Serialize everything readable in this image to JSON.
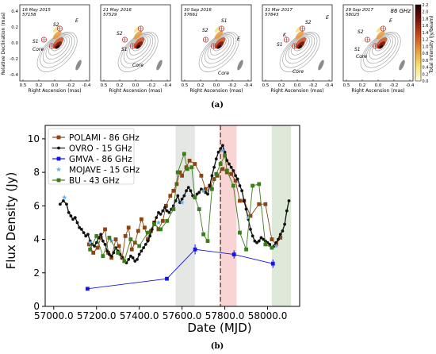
{
  "figure": {
    "label_a": "(a)",
    "label_b": "(b)"
  },
  "panels": [
    {
      "date": "16 May 2015",
      "mjd": "57158",
      "freq": "",
      "labels": [
        {
          "t": "S2"
        },
        {
          "t": "E"
        },
        {
          "t": "S1"
        },
        {
          "t": "Core"
        }
      ]
    },
    {
      "date": "21 May 2016",
      "mjd": "57529",
      "freq": "",
      "labels": [
        {
          "t": "S2"
        },
        {
          "t": "S1"
        },
        {
          "t": "Core"
        }
      ]
    },
    {
      "date": "30 Sep 2016",
      "mjd": "57661",
      "freq": "",
      "labels": [
        {
          "t": "S2"
        },
        {
          "t": "S1"
        },
        {
          "t": "E"
        },
        {
          "t": "Core"
        }
      ]
    },
    {
      "date": "31 Mar 2017",
      "mjd": "57843",
      "freq": "",
      "labels": [
        {
          "t": "K"
        },
        {
          "t": "S2"
        },
        {
          "t": "E"
        },
        {
          "t": "S1"
        },
        {
          "t": "Core"
        }
      ]
    },
    {
      "date": "29 Sep 2017",
      "mjd": "58025",
      "freq": "86 GHz",
      "labels": [
        {
          "t": "S2"
        },
        {
          "t": "E"
        },
        {
          "t": "S1"
        },
        {
          "t": "Core"
        }
      ]
    }
  ],
  "maps": {
    "ylabel": "Relative Declination (mas)",
    "xlabel": "Right Ascension (mas)",
    "xticks": [
      "0.5",
      "0.2",
      "0.0",
      "-0.2",
      "-0.4"
    ],
    "yticks": [
      "0.4",
      "0.2",
      "0.0",
      "-0.2",
      "-0.4"
    ],
    "colorbar_label": "Total Intensity (Jy/beam)",
    "colorbar_ticks": [
      "2.2",
      "2.0",
      "1.8",
      "1.6",
      "1.4",
      "1.2",
      "1.0",
      "0.8",
      "0.6",
      "0.4",
      "0.2",
      "0.0"
    ],
    "colormap": [
      "#fffde0",
      "#f8e070",
      "#e99a38",
      "#c84a1c",
      "#7a1408",
      "#1a0000"
    ]
  },
  "chart_data": {
    "type": "line",
    "xlabel": "Date (MJD)",
    "ylabel": "Flux Density (Jy)",
    "xlim": [
      56960,
      58150
    ],
    "ylim": [
      0,
      10.8
    ],
    "xticks": [
      57000,
      57200,
      57400,
      57600,
      57800,
      58000
    ],
    "xtick_labels": [
      "57000.0",
      "57200.0",
      "57400.0",
      "57600.0",
      "57800.0",
      "58000.0"
    ],
    "yticks": [
      0,
      2,
      4,
      6,
      8,
      10
    ],
    "ytick_labels": [
      "0",
      "2",
      "4",
      "6",
      "8",
      "10"
    ],
    "legend_position": "top-left",
    "shaded_regions": [
      {
        "x0": 57570,
        "x1": 57660,
        "color": "#d3d7d3"
      },
      {
        "x0": 57775,
        "x1": 57855,
        "color": "#f4b8b8"
      },
      {
        "x0": 58020,
        "x1": 58110,
        "color": "#c6dcbf"
      }
    ],
    "vertical_line": {
      "x": 57780,
      "color": "#7b5a4a"
    },
    "series": [
      {
        "name": "POLAMI - 86 GHz",
        "color": "#8b4513",
        "marker": "square",
        "lines": true,
        "x": [
          57165,
          57185,
          57205,
          57220,
          57240,
          57255,
          57270,
          57290,
          57305,
          57320,
          57335,
          57350,
          57365,
          57380,
          57395,
          57410,
          57425,
          57440,
          57455,
          57470,
          57490,
          57510,
          57525,
          57545,
          57560,
          57575,
          57590,
          57600,
          57620,
          57635,
          57660,
          57690,
          57710,
          57730,
          57750,
          57765,
          57790,
          57810,
          57830,
          57850,
          57870,
          57890,
          57920,
          57960,
          57990,
          58020,
          58040,
          58060
        ],
        "y": [
          3.7,
          3.2,
          3.5,
          4.1,
          4.6,
          3.2,
          2.9,
          4.0,
          3.6,
          2.9,
          4.2,
          4.7,
          3.4,
          3.8,
          4.5,
          5.2,
          4.7,
          4.0,
          4.5,
          5.0,
          4.6,
          5.1,
          6.0,
          6.6,
          6.9,
          7.3,
          8.0,
          7.8,
          8.3,
          8.7,
          8.5,
          7.8,
          7.0,
          7.2,
          7.6,
          7.8,
          8.2,
          8.0,
          7.9,
          7.5,
          6.3,
          6.3,
          5.4,
          6.1,
          6.1,
          4.0,
          3.7,
          4.1
        ]
      },
      {
        "name": "OVRO - 15 GHz",
        "color": "#111111",
        "marker": "circle",
        "lines": true,
        "x": [
          57030,
          57045,
          57060,
          57070,
          57080,
          57090,
          57100,
          57110,
          57120,
          57130,
          57140,
          57150,
          57160,
          57170,
          57180,
          57190,
          57200,
          57210,
          57220,
          57230,
          57240,
          57250,
          57260,
          57270,
          57280,
          57290,
          57300,
          57310,
          57320,
          57330,
          57340,
          57350,
          57360,
          57370,
          57380,
          57390,
          57400,
          57410,
          57420,
          57430,
          57440,
          57450,
          57460,
          57470,
          57480,
          57490,
          57500,
          57510,
          57520,
          57530,
          57540,
          57550,
          57560,
          57570,
          57580,
          57590,
          57600,
          57610,
          57620,
          57630,
          57640,
          57650,
          57660,
          57670,
          57680,
          57690,
          57700,
          57710,
          57720,
          57730,
          57740,
          57750,
          57760,
          57770,
          57780,
          57790,
          57800,
          57810,
          57820,
          57830,
          57840,
          57850,
          57860,
          57870,
          57880,
          57890,
          57900,
          57910,
          57920,
          57930,
          57940,
          57950,
          57960,
          57970,
          57980,
          57990,
          58000,
          58010,
          58020,
          58030,
          58040,
          58050,
          58060,
          58070,
          58080,
          58090,
          58100
        ],
        "y": [
          6.1,
          6.3,
          6.1,
          5.6,
          5.4,
          5.2,
          5.3,
          5.0,
          4.7,
          4.6,
          4.4,
          4.2,
          4.3,
          3.9,
          3.7,
          3.6,
          3.8,
          4.1,
          4.3,
          3.9,
          3.7,
          3.3,
          3.1,
          3.0,
          3.2,
          3.5,
          3.3,
          3.1,
          2.9,
          2.7,
          2.6,
          2.8,
          3.0,
          2.9,
          2.7,
          2.8,
          3.1,
          3.3,
          3.5,
          3.7,
          3.9,
          4.2,
          4.6,
          5.0,
          5.3,
          5.6,
          5.5,
          5.7,
          5.9,
          5.7,
          5.6,
          5.8,
          6.0,
          6.3,
          6.6,
          6.2,
          6.4,
          6.6,
          6.9,
          7.1,
          6.9,
          6.6,
          6.5,
          6.7,
          6.8,
          7.0,
          6.9,
          6.8,
          6.7,
          7.2,
          7.8,
          8.3,
          8.8,
          9.2,
          9.4,
          9.6,
          9.2,
          8.7,
          8.5,
          8.3,
          8.1,
          7.8,
          7.6,
          7.2,
          6.9,
          6.3,
          5.8,
          5.2,
          4.6,
          4.2,
          3.9,
          3.8,
          3.9,
          4.1,
          4.0,
          3.9,
          3.8,
          3.7,
          3.5,
          3.6,
          3.8,
          4.0,
          4.3,
          4.5,
          4.9,
          5.7,
          6.3
        ]
      },
      {
        "name": "GMVA - 86 GHz",
        "color": "#1515e6",
        "marker": "square",
        "lines": true,
        "x": [
          57158,
          57529,
          57661,
          57843,
          58025
        ],
        "y": [
          1.05,
          1.65,
          3.4,
          3.1,
          2.55
        ],
        "yerr": [
          0.05,
          0.1,
          0.3,
          0.25,
          0.25
        ]
      },
      {
        "name": "MOJAVE - 15 GHz",
        "color": "#6aaee6",
        "marker": "star",
        "lines": false,
        "x": [
          57050,
          57170,
          57270,
          57490,
          57600,
          57700,
          57790,
          57910,
          58040
        ],
        "y": [
          6.5,
          3.8,
          3.9,
          5.0,
          6.2,
          6.9,
          9.3,
          5.3,
          3.6
        ]
      },
      {
        "name": "BU - 43 GHz",
        "color": "#3a7d1a",
        "marker": "square",
        "lines": true,
        "x": [
          57170,
          57200,
          57230,
          57260,
          57300,
          57330,
          57360,
          57400,
          57440,
          57470,
          57500,
          57530,
          57560,
          57580,
          57610,
          57625,
          57645,
          57660,
          57680,
          57700,
          57720,
          57740,
          57760,
          57780,
          57800,
          57810,
          57840,
          57870,
          57900,
          57930,
          57960,
          57990,
          58020
        ],
        "y": [
          3.4,
          4.2,
          3.0,
          4.1,
          3.2,
          2.7,
          4.0,
          3.6,
          4.4,
          4.9,
          4.6,
          5.1,
          5.8,
          8.0,
          9.1,
          8.2,
          8.3,
          6.5,
          5.8,
          4.3,
          3.9,
          7.0,
          7.9,
          8.5,
          9.0,
          8.1,
          7.2,
          4.4,
          3.4,
          7.2,
          7.3,
          3.7,
          3.5
        ]
      }
    ]
  }
}
